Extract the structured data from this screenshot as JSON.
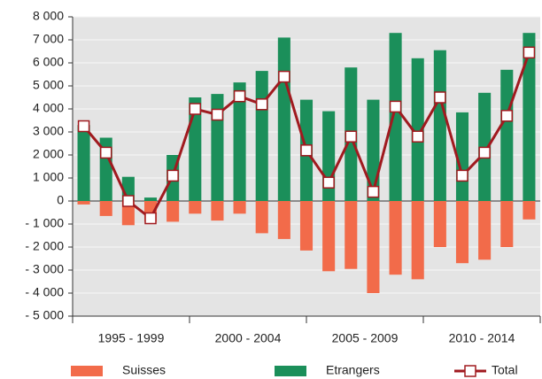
{
  "chart_data": {
    "type": "bar-line",
    "categories": [
      null,
      null,
      null,
      null,
      null,
      null,
      null,
      null,
      null,
      null,
      null,
      null,
      null,
      null,
      null,
      null,
      null,
      null,
      null,
      null,
      null
    ],
    "category_groups": [
      "1995 - 1999",
      "2000 - 2004",
      "2005 - 2009",
      "2010 - 2014"
    ],
    "series": [
      {
        "name": "Suisses",
        "type": "bar",
        "color": "#f26b4a",
        "values": [
          -150,
          -650,
          -1050,
          -900,
          -900,
          -550,
          -850,
          -550,
          -1400,
          -1650,
          -2150,
          -3050,
          -2950,
          -4000,
          -3200,
          -3400,
          -2000,
          -2700,
          -2550,
          -2000,
          -800
        ]
      },
      {
        "name": "Etrangers",
        "type": "bar",
        "color": "#1b8f5a",
        "values": [
          3300,
          2750,
          1050,
          150,
          2000,
          4500,
          4650,
          5150,
          5650,
          7100,
          4400,
          3900,
          5800,
          4400,
          7300,
          6200,
          6550,
          3850,
          4700,
          5700,
          7300
        ]
      },
      {
        "name": "Total",
        "type": "line",
        "color": "#a01a1f",
        "values": [
          3250,
          2100,
          0,
          -750,
          1100,
          4000,
          3750,
          4550,
          4200,
          5400,
          2200,
          800,
          2800,
          400,
          4100,
          2800,
          4500,
          1100,
          2100,
          3700,
          6450
        ]
      }
    ],
    "ylim": [
      -5000,
      8000
    ],
    "yticks": [
      {
        "value": -5000,
        "label": "- 5 000"
      },
      {
        "value": -4000,
        "label": "- 4 000"
      },
      {
        "value": -3000,
        "label": "- 3 000"
      },
      {
        "value": -2000,
        "label": "- 2 000"
      },
      {
        "value": -1000,
        "label": "- 1 000"
      },
      0,
      {
        "value": 1000,
        "label": "1 000"
      },
      {
        "value": 2000,
        "label": "2 000"
      },
      {
        "value": 3000,
        "label": "3 000"
      },
      {
        "value": 4000,
        "label": "4 000"
      },
      {
        "value": 5000,
        "label": "5 000"
      },
      {
        "value": 6000,
        "label": "6 000"
      },
      {
        "value": 7000,
        "label": "7 000"
      },
      {
        "value": 8000,
        "label": "8 000"
      }
    ],
    "grid": true
  }
}
